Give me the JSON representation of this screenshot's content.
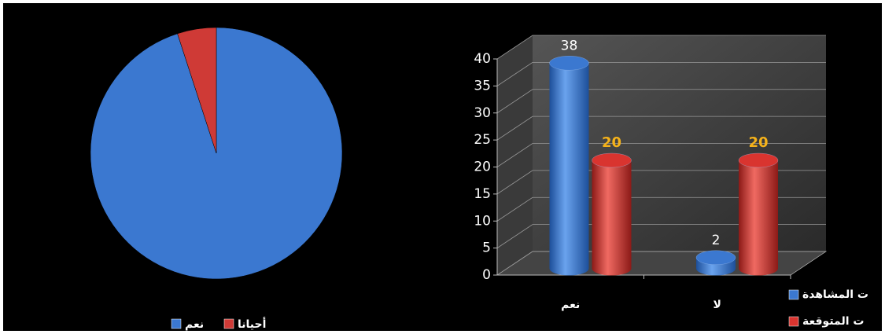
{
  "chart_data": [
    {
      "type": "pie",
      "categories": [
        "نعم",
        "أحيانا"
      ],
      "values": [
        95,
        5
      ],
      "colors": [
        "#3b78d0",
        "#cf3a36"
      ]
    },
    {
      "type": "bar3d",
      "categories": [
        "نعم",
        "لا"
      ],
      "series": [
        {
          "name": "ت المشاهدة",
          "color": "#3b78d0",
          "values": [
            38,
            2
          ]
        },
        {
          "name": "ت المتوقعة",
          "color": "#d9342f",
          "values": [
            20,
            20
          ]
        }
      ],
      "ylim": [
        0,
        40
      ],
      "yticks": [
        0,
        5,
        10,
        15,
        20,
        25,
        30,
        35,
        40
      ],
      "grid": true
    }
  ]
}
